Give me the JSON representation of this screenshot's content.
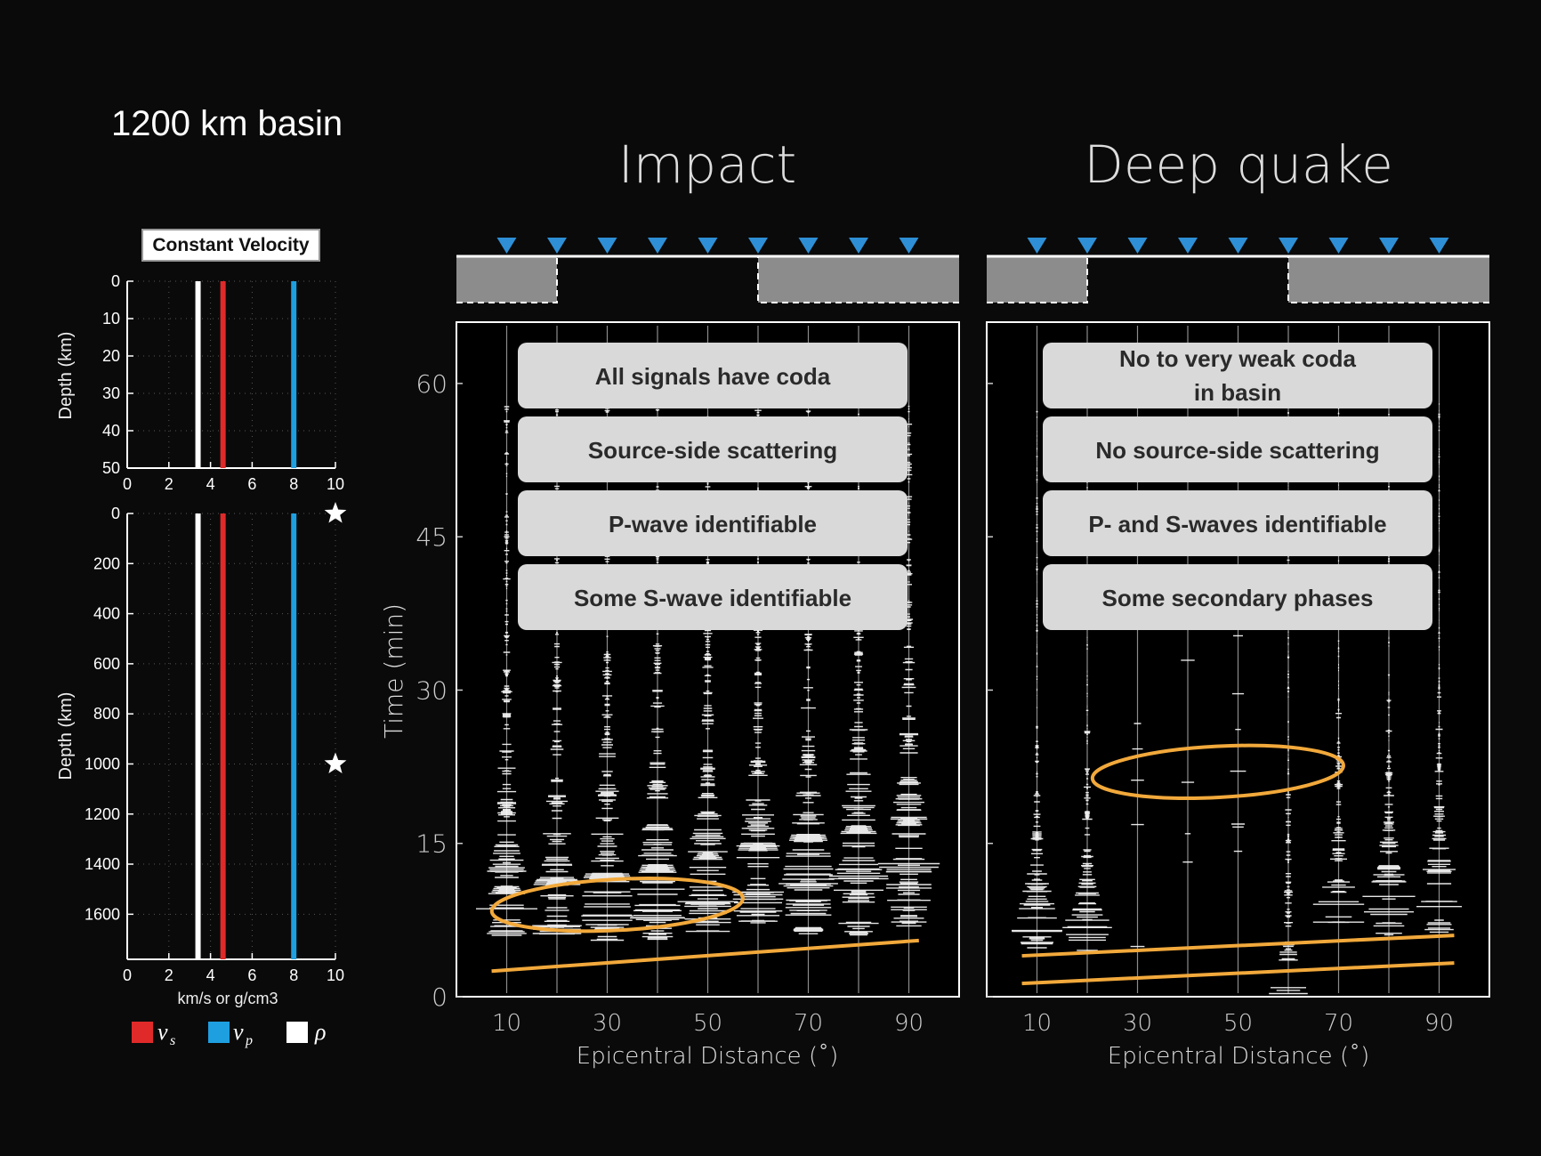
{
  "title": "1200 km basin",
  "velocity_panel": {
    "heading": "Constant Velocity",
    "top_ylabel": "Depth (km)",
    "bottom_ylabel": "Depth (km)",
    "xlabel": "km/s or g/cm3",
    "legend": [
      {
        "key": "vs",
        "label": "v",
        "sub": "s",
        "color": "#e02a2a"
      },
      {
        "key": "vp",
        "label": "v",
        "sub": "p",
        "color": "#1e9fe0"
      },
      {
        "key": "rho",
        "label": "ρ",
        "sub": "",
        "color": "#ffffff"
      }
    ]
  },
  "panels": [
    {
      "id": "impact",
      "title": "Impact",
      "boxes": [
        "All signals have coda",
        "Source-side scattering",
        "P-wave identifiable",
        "Some S-wave identifiable"
      ],
      "xlabel": "Epicentral Distance (˚)"
    },
    {
      "id": "deep",
      "title": "Deep quake",
      "boxes": [
        "No to very weak coda",
        "in basin",
        "No source-side scattering",
        "P- and S-waves identifiable",
        "Some secondary phases"
      ],
      "xlabel": "Epicentral Distance (˚)"
    }
  ],
  "time_axis_label": "Time (min)",
  "colors": {
    "station": "#2e8fd6",
    "highlight": "#f2a93b",
    "basin": "#8c8c8c",
    "trace": "#ffffff"
  },
  "chart_data": [
    {
      "type": "line",
      "title": "",
      "xlabel": "km/s or g/cm3",
      "ylabel": "Depth (km)",
      "xlim": [
        0,
        10
      ],
      "ylim": [
        50,
        0
      ],
      "xticks": [
        0,
        2,
        4,
        6,
        8,
        10
      ],
      "yticks": [
        0,
        10,
        20,
        30,
        40,
        50
      ],
      "grid": true,
      "series": [
        {
          "name": "ρ",
          "color": "#ffffff",
          "x": [
            3.4,
            3.4
          ],
          "y": [
            0,
            50
          ]
        },
        {
          "name": "vs",
          "color": "#e02a2a",
          "x": [
            4.6,
            4.6
          ],
          "y": [
            0,
            50
          ]
        },
        {
          "name": "vp",
          "color": "#1e9fe0",
          "x": [
            8.0,
            8.0
          ],
          "y": [
            0,
            50
          ]
        }
      ]
    },
    {
      "type": "line",
      "title": "",
      "xlabel": "km/s or g/cm3",
      "ylabel": "Depth (km)",
      "xlim": [
        0,
        10
      ],
      "ylim": [
        1780,
        0
      ],
      "xticks": [
        0,
        2,
        4,
        6,
        8,
        10
      ],
      "yticks": [
        0,
        200,
        400,
        600,
        800,
        1000,
        1200,
        1400,
        1600
      ],
      "grid": true,
      "series": [
        {
          "name": "ρ",
          "color": "#ffffff",
          "x": [
            3.4,
            3.4
          ],
          "y": [
            0,
            1780
          ]
        },
        {
          "name": "vs",
          "color": "#e02a2a",
          "x": [
            4.6,
            4.6
          ],
          "y": [
            0,
            1780
          ]
        },
        {
          "name": "vp",
          "color": "#1e9fe0",
          "x": [
            8.0,
            8.0
          ],
          "y": [
            0,
            1780
          ]
        }
      ],
      "markers": [
        {
          "symbol": "star",
          "x": 10,
          "y": 0
        },
        {
          "symbol": "star",
          "x": 10,
          "y": 1000
        }
      ]
    },
    {
      "type": "scatter",
      "title": "Impact",
      "xlabel": "Epicentral Distance (˚)",
      "ylabel": "Time (min)",
      "xlim": [
        0,
        100
      ],
      "ylim": [
        0,
        66
      ],
      "xticks": [
        10,
        30,
        50,
        70,
        90
      ],
      "yticks": [
        0,
        15,
        30,
        45,
        60
      ],
      "stations": [
        10,
        20,
        30,
        40,
        50,
        60,
        70,
        80,
        90
      ],
      "basin_range": [
        20,
        60
      ],
      "signal_onset_min": [
        6,
        6,
        5.5,
        5.5,
        6,
        6,
        6,
        6,
        6
      ],
      "energy_peak_min": [
        8,
        8,
        9,
        9.5,
        10,
        10.5,
        11,
        12,
        13
      ],
      "arrival_line": {
        "x": [
          7,
          92
        ],
        "y": [
          2.5,
          5.5
        ]
      },
      "ellipse": {
        "cx": 32,
        "cy": 9,
        "rx": 25,
        "ry": 2.5
      }
    },
    {
      "type": "scatter",
      "title": "Deep quake",
      "xlabel": "Epicentral Distance (˚)",
      "ylabel": "Time (min)",
      "xlim": [
        0,
        100
      ],
      "ylim": [
        0,
        66
      ],
      "xticks": [
        10,
        30,
        50,
        70,
        90
      ],
      "yticks": [
        0,
        15,
        30,
        45,
        60
      ],
      "stations": [
        10,
        20,
        30,
        40,
        50,
        60,
        70,
        80,
        90
      ],
      "basin_range": [
        20,
        60
      ],
      "signal_onset_min": [
        3,
        4.5,
        0,
        0,
        0,
        0,
        6,
        6,
        6
      ],
      "energy_peak_min": [
        7,
        6,
        0,
        0,
        0,
        0,
        8,
        9,
        10
      ],
      "arrival_lines": [
        {
          "x": [
            7,
            93
          ],
          "y": [
            4,
            6
          ]
        },
        {
          "x": [
            7,
            93
          ],
          "y": [
            1.3,
            3.3
          ]
        }
      ],
      "ellipse": {
        "cx": 46,
        "cy": 22,
        "rx": 25,
        "ry": 2.5
      }
    }
  ]
}
